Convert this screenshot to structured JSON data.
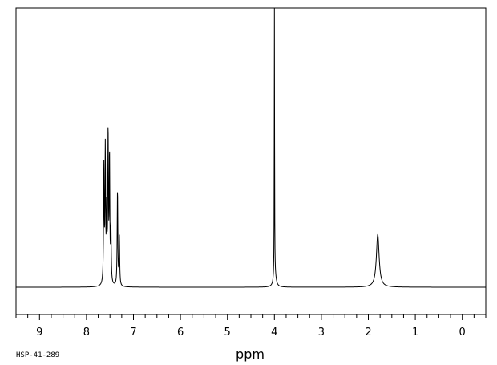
{
  "chart_data": {
    "type": "line",
    "title": "",
    "xlabel": "ppm",
    "ylabel": "",
    "sample_code": "HSP-41-289",
    "x_reversed": true,
    "xlim": [
      9.5,
      -0.5
    ],
    "ylim": [
      -0.15,
      1.35
    ],
    "x_major_ticks": [
      9,
      8,
      7,
      6,
      5,
      4,
      3,
      2,
      1,
      0
    ],
    "x_tick_labels": [
      "9",
      "8",
      "7",
      "6",
      "5",
      "4",
      "3",
      "2",
      "1",
      "0"
    ],
    "x_minor_step": 0.25,
    "baseline": 0.0,
    "grid": false,
    "line_color": "#000000",
    "series": [
      {
        "peaks": [
          {
            "ppm": 7.63,
            "height": 0.48,
            "width": 0.008
          },
          {
            "ppm": 7.6,
            "height": 0.55,
            "width": 0.008
          },
          {
            "ppm": 7.57,
            "height": 0.28,
            "width": 0.008
          },
          {
            "ppm": 7.54,
            "height": 0.62,
            "width": 0.008
          },
          {
            "ppm": 7.51,
            "height": 0.52,
            "width": 0.008
          },
          {
            "ppm": 7.48,
            "height": 0.22,
            "width": 0.008
          },
          {
            "ppm": 7.34,
            "height": 0.4,
            "width": 0.008
          },
          {
            "ppm": 7.3,
            "height": 0.2,
            "width": 0.008
          },
          {
            "ppm": 4.0,
            "height": 1.17,
            "width": 0.004
          },
          {
            "ppm": 3.99,
            "height": 0.05,
            "width": 0.03
          },
          {
            "ppm": 1.8,
            "height": 0.22,
            "width": 0.035
          }
        ]
      }
    ]
  }
}
